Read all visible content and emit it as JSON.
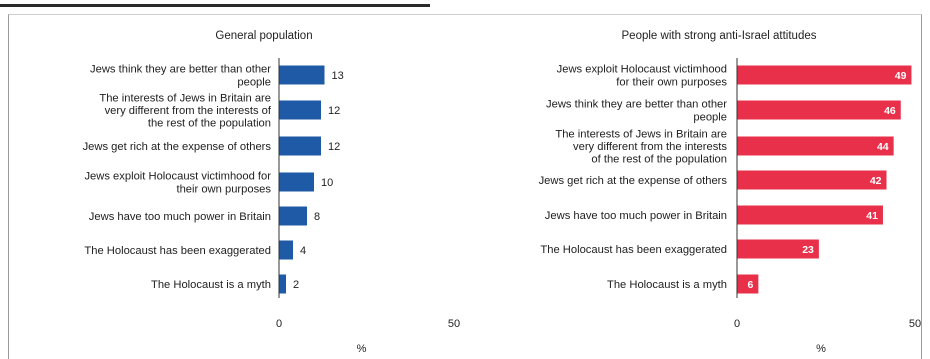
{
  "chart_data": [
    {
      "type": "bar",
      "orientation": "horizontal",
      "title": "General population",
      "xlabel": "%",
      "xlim": [
        0,
        50
      ],
      "xticks": [
        0,
        50
      ],
      "color": "#1f5aa6",
      "categories": [
        [
          "Jews think they are better than other",
          "people"
        ],
        [
          "The interests of Jews in Britain are",
          "very different from the interests of",
          "the rest of the population"
        ],
        [
          "Jews get rich at the expense of others"
        ],
        [
          "Jews exploit Holocaust victimhood for",
          "their own purposes"
        ],
        [
          "Jews have too much power in Britain"
        ],
        [
          "The Holocaust has been exaggerated"
        ],
        [
          "The Holocaust is a myth"
        ]
      ],
      "values": [
        13,
        12,
        12,
        10,
        8,
        4,
        2
      ]
    },
    {
      "type": "bar",
      "orientation": "horizontal",
      "title": "People with strong anti-Israel attitudes",
      "xlabel": "%",
      "xlim": [
        0,
        50
      ],
      "xticks": [
        0,
        50
      ],
      "color": "#e8304a",
      "categories": [
        [
          "Jews exploit Holocaust victimhood",
          "for their own purposes"
        ],
        [
          "Jews think they are better than other",
          "people"
        ],
        [
          "The interests of Jews in Britain are",
          "very different from the interests",
          "of the rest of the population"
        ],
        [
          "Jews get rich at the expense of others"
        ],
        [
          "Jews have too much power in Britain"
        ],
        [
          "The Holocaust has been exaggerated"
        ],
        [
          "The Holocaust is a myth"
        ]
      ],
      "values": [
        49,
        46,
        44,
        42,
        41,
        23,
        6
      ]
    }
  ]
}
